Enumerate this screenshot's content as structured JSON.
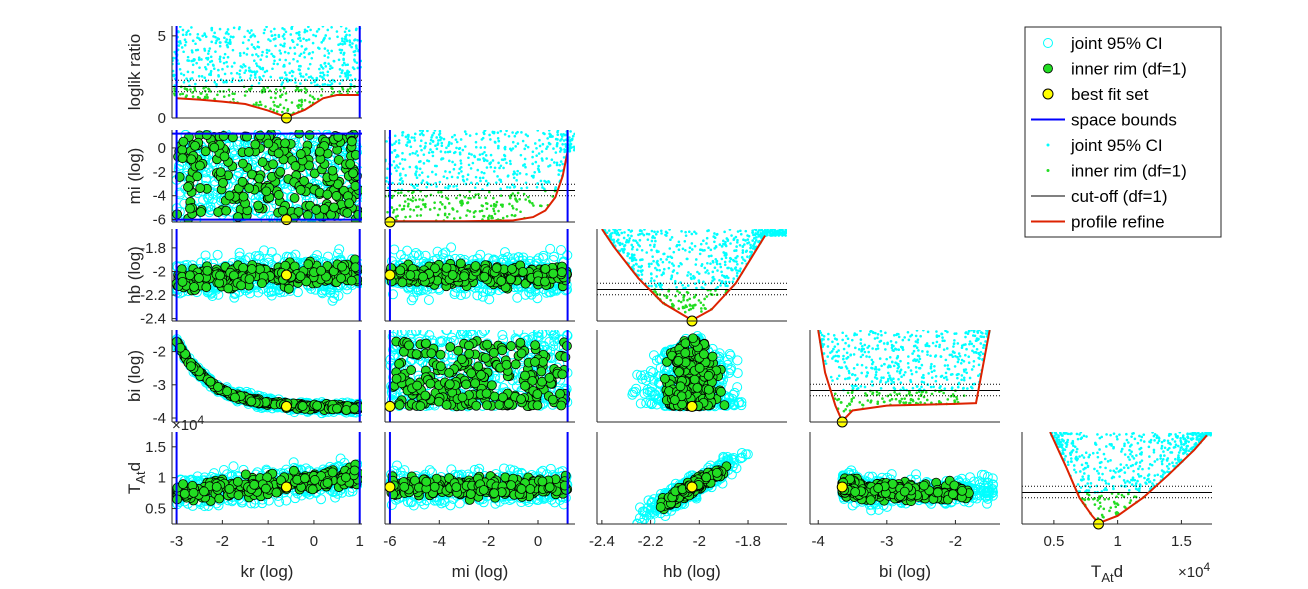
{
  "figure": {
    "variables": [
      "kr (log)",
      "mi (log)",
      "hb (log)",
      "bi (log)",
      "T_At d"
    ],
    "ylabels": [
      "loglik ratio",
      "mi (log)",
      "hb (log)",
      "bi (log)",
      "T_At d"
    ],
    "xlabels": [
      "kr (log)",
      "mi (log)",
      "hb (log)",
      "bi (log)",
      "T_At d"
    ],
    "exponent_label": "×10^4",
    "colors": {
      "joint_ci": "#00ffff",
      "inner_rim_fill": "#22dd22",
      "best_fit": "#ffff00",
      "space_bounds": "#0000ff",
      "cutoff": "#000000",
      "profile": "#dd2200"
    }
  },
  "legend": {
    "items": [
      {
        "label": "joint 95% CI",
        "marker": "open-circle"
      },
      {
        "label": "inner rim (df=1)",
        "marker": "filled-circle"
      },
      {
        "label": "best fit set",
        "marker": "yellow-circle"
      },
      {
        "label": "space bounds",
        "marker": "blue-line"
      },
      {
        "label": "joint 95% CI",
        "marker": "cyan-dot"
      },
      {
        "label": "inner rim (df=1)",
        "marker": "green-dot"
      },
      {
        "label": "cut-off (df=1)",
        "marker": "black-line"
      },
      {
        "label": "profile refine",
        "marker": "red-line"
      }
    ]
  },
  "chart_data": {
    "type": "scatter",
    "layout": "lower-triangular parameter matrix",
    "parameters": [
      {
        "name": "kr (log)",
        "range": [
          -3.1,
          1.05
        ],
        "ticks": [
          "-3",
          "-2",
          "-1",
          "0",
          "1"
        ],
        "tick_values": [
          -3,
          -2,
          -1,
          0,
          1
        ],
        "best_fit": -0.6,
        "bounds": [
          -3,
          1
        ]
      },
      {
        "name": "mi (log)",
        "range": [
          -6.2,
          1.5
        ],
        "ticks": [
          "-6",
          "-4",
          "-2",
          "0"
        ],
        "tick_values": [
          -6,
          -4,
          -2,
          0
        ],
        "best_fit": -6.0,
        "bounds": [
          -6,
          1.2
        ]
      },
      {
        "name": "hb (log)",
        "range": [
          -2.42,
          -1.64
        ],
        "ticks": [
          "-2.4",
          "-2.2",
          "-2",
          "-1.8"
        ],
        "tick_values": [
          -2.4,
          -2.2,
          -2.0,
          -1.8
        ],
        "best_fit": -2.03
      },
      {
        "name": "bi (log)",
        "range": [
          -4.12,
          -1.35
        ],
        "ticks": [
          "-4",
          "-3",
          "-2"
        ],
        "tick_values": [
          -4,
          -3,
          -2
        ],
        "best_fit": -3.65
      },
      {
        "name": "T_At d",
        "range": [
          2500,
          17400
        ],
        "ticks": [
          "0.5",
          "1",
          "1.5"
        ],
        "tick_values": [
          5000,
          10000,
          15000
        ],
        "best_fit": 8500
      }
    ],
    "diagonal_y_axis": {
      "label": "loglik ratio",
      "range": [
        0,
        5.6
      ],
      "ticks": [
        "0",
        "5"
      ],
      "tick_values": [
        0,
        5
      ]
    },
    "y_axes": [
      {
        "row": "mi (log)",
        "ticks": [
          "0",
          "-2",
          "-4",
          "-6"
        ],
        "tick_values": [
          0,
          -2,
          -4,
          -6
        ]
      },
      {
        "row": "hb (log)",
        "ticks": [
          "-1.8",
          "-2",
          "-2.2",
          "-2.4"
        ],
        "tick_values": [
          -1.8,
          -2.0,
          -2.2,
          -2.4
        ]
      },
      {
        "row": "bi (log)",
        "ticks": [
          "-2",
          "-3",
          "-4"
        ],
        "tick_values": [
          -2,
          -3,
          -4
        ]
      },
      {
        "row": "T_At d",
        "ticks": [
          "1.5",
          "1",
          "0.5"
        ],
        "tick_values": [
          15000,
          10000,
          5000
        ]
      }
    ],
    "cutoff": {
      "solid": 1.92,
      "dotted_upper": 2.3,
      "dotted_lower": 1.6
    },
    "profiles": [
      {
        "param": "kr (log)",
        "x": [
          -3.0,
          -2.5,
          -2.0,
          -1.5,
          -1.0,
          -0.6,
          -0.2,
          0.2,
          0.5,
          1.0
        ],
        "y": [
          1.2,
          1.12,
          1.0,
          0.85,
          0.45,
          0.05,
          0.5,
          1.2,
          1.4,
          1.4
        ]
      },
      {
        "param": "mi (log)",
        "x": [
          -6.0,
          -5.0,
          -3.0,
          -1.0,
          -0.2,
          0.3,
          0.7,
          1.0,
          1.2
        ],
        "y": [
          0.05,
          0.05,
          0.05,
          0.1,
          0.3,
          0.7,
          1.5,
          2.8,
          4.3
        ]
      },
      {
        "param": "hb (log)",
        "x": [
          -2.4,
          -2.35,
          -2.25,
          -2.15,
          -2.03,
          -1.95,
          -1.85,
          -1.78,
          -1.73
        ],
        "y": [
          5.6,
          4.5,
          2.6,
          1.1,
          0.05,
          0.7,
          2.3,
          4.0,
          5.2
        ]
      },
      {
        "param": "bi (log)",
        "x": [
          -4.0,
          -3.9,
          -3.75,
          -3.65,
          -3.5,
          -3.0,
          -2.5,
          -2.0,
          -1.7,
          -1.5
        ],
        "y": [
          5.6,
          3.0,
          1.0,
          0.05,
          0.7,
          1.0,
          1.05,
          1.1,
          1.15,
          5.6
        ]
      },
      {
        "param": "T_At d",
        "x": [
          4700,
          6000,
          7000,
          8000,
          8500,
          10000,
          12000,
          14000,
          16000,
          17000
        ],
        "y": [
          5.6,
          3.4,
          1.6,
          0.5,
          0.05,
          0.5,
          1.6,
          3.0,
          4.5,
          5.4
        ]
      }
    ],
    "series": [
      {
        "name": "joint 95% CI",
        "style": "open cyan circles (off-diagonal) / cyan dots (diagonal)"
      },
      {
        "name": "inner rim (df=1)",
        "style": "green filled circles (off-diagonal) / green dots (diagonal)"
      },
      {
        "name": "best fit set",
        "point": {
          "kr (log)": -0.6,
          "mi (log)": -6.0,
          "hb (log)": -2.03,
          "bi (log)": -3.65,
          "T_At d": 8500,
          "loglik ratio": 0
        }
      }
    ]
  }
}
